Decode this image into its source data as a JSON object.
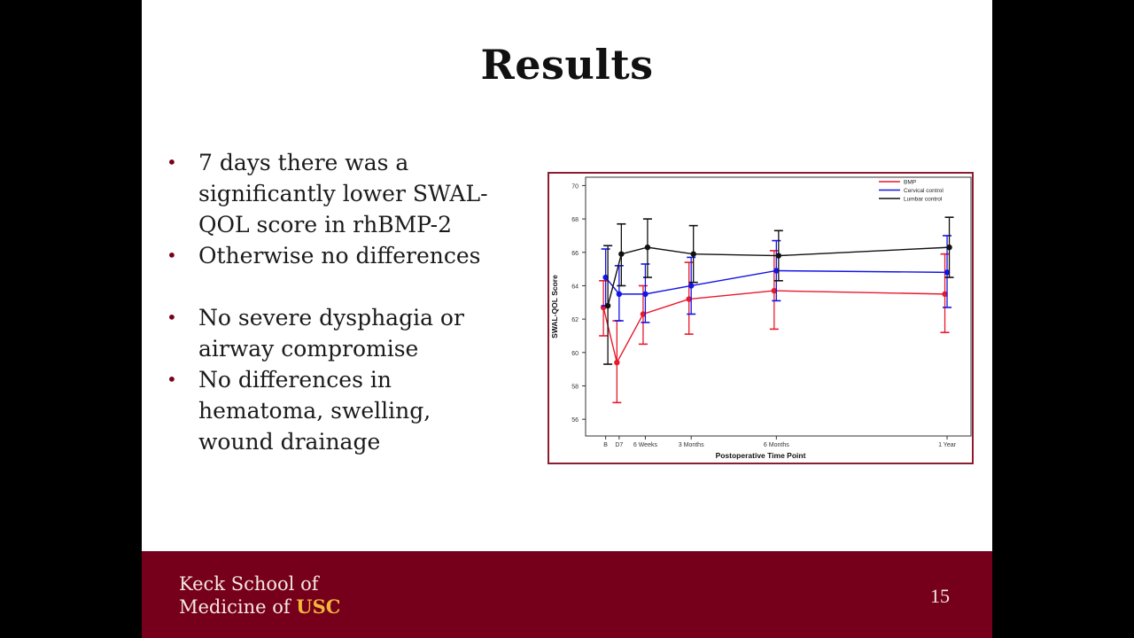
{
  "slide": {
    "title": "Results",
    "bullets": [
      "7 days there was a significantly lower SWAL-QOL score in rhBMP-2",
      "Otherwise no differences",
      "No severe dysphagia or airway compromise",
      "No differences in hematoma, swelling, wound drainage"
    ],
    "bullet_symbol": "•",
    "footer_logo_line1": "Keck School of",
    "footer_logo_line2_prefix": "Medicine of ",
    "footer_logo_line2_brand": "USC",
    "page_number": "15"
  },
  "colors": {
    "footer": "#76001c",
    "accent_gold": "#f2b73a",
    "bmp": "#e8192c",
    "cervical": "#1414e6",
    "lumbar": "#111111"
  },
  "chart_data": {
    "type": "line",
    "xlabel": "Postoperative Time Point",
    "ylabel": "SWAL-QOL Score",
    "categories": [
      "B",
      "D7",
      "6 Weeks",
      "3 Months",
      "6 Months",
      "1 Year"
    ],
    "ylim": [
      55,
      70.5
    ],
    "yticks": [
      56,
      58,
      60,
      62,
      64,
      66,
      68,
      70
    ],
    "legend_position": "top-right",
    "series": [
      {
        "name": "BMP",
        "color": "#e8192c",
        "points": [
          {
            "x": "B",
            "y": 62.7,
            "low": 61.0,
            "high": 64.3
          },
          {
            "x": "D7",
            "y": 59.4,
            "low": 57.0,
            "high": 61.9
          },
          {
            "x": "6 Weeks",
            "y": 62.3,
            "low": 60.5,
            "high": 64.0
          },
          {
            "x": "3 Months",
            "y": 63.2,
            "low": 61.1,
            "high": 65.4
          },
          {
            "x": "6 Months",
            "y": 63.7,
            "low": 61.4,
            "high": 66.1
          },
          {
            "x": "1 Year",
            "y": 63.5,
            "low": 61.2,
            "high": 65.9
          }
        ]
      },
      {
        "name": "Cervical control",
        "color": "#1414e6",
        "points": [
          {
            "x": "B",
            "y": 64.5,
            "low": 62.8,
            "high": 66.2
          },
          {
            "x": "D7",
            "y": 63.5,
            "low": 61.9,
            "high": 65.2
          },
          {
            "x": "6 Weeks",
            "y": 63.5,
            "low": 61.8,
            "high": 65.3
          },
          {
            "x": "3 Months",
            "y": 64.0,
            "low": 62.3,
            "high": 65.7
          },
          {
            "x": "6 Months",
            "y": 64.9,
            "low": 63.1,
            "high": 66.7
          },
          {
            "x": "1 Year",
            "y": 64.8,
            "low": 62.7,
            "high": 67.0
          }
        ]
      },
      {
        "name": "Lumbar control",
        "color": "#111111",
        "points": [
          {
            "x": "B",
            "y": 62.8,
            "low": 59.3,
            "high": 66.4
          },
          {
            "x": "D7",
            "y": 65.9,
            "low": 64.0,
            "high": 67.7
          },
          {
            "x": "6 Weeks",
            "y": 66.3,
            "low": 64.5,
            "high": 68.0
          },
          {
            "x": "3 Months",
            "y": 65.9,
            "low": 64.2,
            "high": 67.6
          },
          {
            "x": "6 Months",
            "y": 65.8,
            "low": 64.3,
            "high": 67.3
          },
          {
            "x": "1 Year",
            "y": 66.3,
            "low": 64.5,
            "high": 68.1
          }
        ]
      }
    ]
  }
}
